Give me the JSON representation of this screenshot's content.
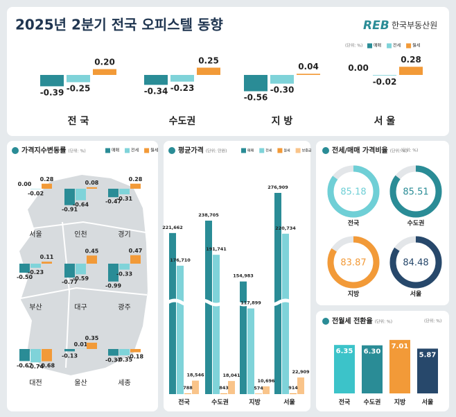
{
  "header": {
    "title": "2025년 2분기 전국 오피스텔 동향",
    "logo_mark": "REB",
    "logo": "한국부동산원"
  },
  "chart_data": [
    {
      "type": "bar",
      "unit": "(단위: %)",
      "categories": [
        "전 국",
        "수도권",
        "지 방",
        "서 울"
      ],
      "series": [
        {
          "name": "매매",
          "color": "#2a8c96",
          "values": [
            -0.39,
            -0.34,
            -0.56,
            0.0
          ],
          "value_labels": [
            "-0.39",
            "-0.34",
            "-0.56",
            "0.00"
          ]
        },
        {
          "name": "전세",
          "color": "#7fd3d9",
          "values": [
            -0.25,
            -0.23,
            -0.3,
            -0.02
          ],
          "value_labels": [
            "-0.25",
            "-0.23",
            "-0.30",
            "-0.02"
          ]
        },
        {
          "name": "월세",
          "color": "#f29a38",
          "values": [
            0.2,
            0.25,
            0.04,
            0.28
          ],
          "value_labels": [
            "0.20",
            "0.25",
            "0.04",
            "0.28"
          ]
        }
      ]
    },
    {
      "type": "bar",
      "title": "가격지수변동률",
      "unit": "(단위: %)",
      "categories": [
        "서울",
        "인천",
        "경기",
        "부산",
        "대구",
        "광주",
        "대전",
        "울산",
        "세종"
      ],
      "series": [
        {
          "name": "매매",
          "color": "#2a8c96",
          "values": [
            0.0,
            -0.91,
            -0.47,
            -0.5,
            -0.77,
            -0.99,
            -0.67,
            -0.13,
            -0.37
          ],
          "value_labels": [
            "0.00",
            "-0.91",
            "-0.47",
            "-0.50",
            "-0.77",
            "-0.99",
            "-0.67",
            "-0.13",
            "-0.37"
          ]
        },
        {
          "name": "전세",
          "color": "#7fd3d9",
          "values": [
            -0.02,
            -0.64,
            -0.31,
            -0.23,
            -0.59,
            -0.33,
            -0.74,
            0.01,
            -0.35
          ],
          "value_labels": [
            "-0.02",
            "-0.64",
            "-0.31",
            "-0.23",
            "-0.59",
            "-0.33",
            "-0.74",
            "0.01",
            "-0.35"
          ]
        },
        {
          "name": "월세",
          "color": "#f29a38",
          "values": [
            0.28,
            0.08,
            0.28,
            0.11,
            0.45,
            0.47,
            -0.68,
            0.35,
            -0.18
          ],
          "value_labels": [
            "0.28",
            "0.08",
            "0.28",
            "0.11",
            "0.45",
            "0.47",
            "-0.68",
            "0.35",
            "-0.18"
          ]
        }
      ]
    },
    {
      "type": "bar",
      "title": "평균가격",
      "unit": "(단위: 만원)",
      "categories": [
        "전국",
        "수도권",
        "지방",
        "서울"
      ],
      "series": [
        {
          "name": "매매",
          "color": "#2a8c96",
          "values": [
            221662,
            238705,
            154983,
            276909
          ],
          "value_labels": [
            "221,662",
            "238,705",
            "154,983",
            "276,909"
          ]
        },
        {
          "name": "전세",
          "color": "#7fd3d9",
          "values": [
            176710,
            191741,
            117899,
            220734
          ],
          "value_labels": [
            "176,710",
            "191,741",
            "117,899",
            "220,734"
          ]
        },
        {
          "name": "월세",
          "color": "#f29a38",
          "values": [
            788,
            843,
            574,
            914
          ],
          "value_labels": [
            "788",
            "843",
            "574",
            "914"
          ]
        },
        {
          "name": "보증금",
          "color": "#f9c48a",
          "values": [
            18546,
            18041,
            10696,
            22909
          ],
          "value_labels": [
            "18,546",
            "18,041",
            "10,696",
            "22,909"
          ]
        }
      ]
    },
    {
      "type": "donut",
      "title": "전세/매매 가격비율",
      "unit": "(단위: %)",
      "categories": [
        "전국",
        "수도권",
        "지방",
        "서울"
      ],
      "values": [
        85.18,
        85.51,
        83.87,
        84.48
      ],
      "colors": [
        "#6fcfd6",
        "#2a8c96",
        "#f29a38",
        "#27486b"
      ]
    },
    {
      "type": "bar",
      "title": "전월세 전환율",
      "unit": "(단위: %)",
      "categories": [
        "전국",
        "수도권",
        "지방",
        "서울"
      ],
      "values": [
        6.35,
        6.3,
        7.01,
        5.87
      ],
      "value_labels": [
        "6.35",
        "6.30",
        "7.01",
        "5.87"
      ],
      "colors": [
        "#3cc3c9",
        "#2a8c96",
        "#f29a38",
        "#27486b"
      ]
    }
  ]
}
